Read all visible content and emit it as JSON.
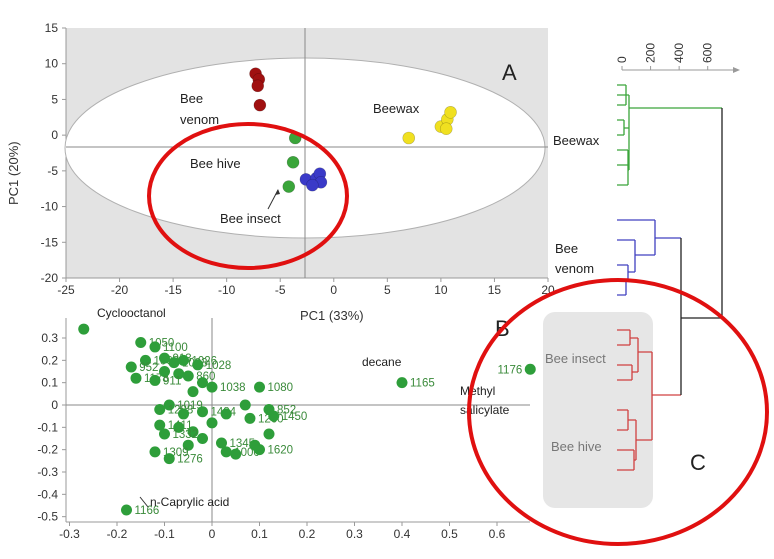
{
  "colors": {
    "bee_venom": "#a01010",
    "bee_hive": "#3aa53a",
    "bee_insect": "#3a3ac8",
    "beewax": "#f0e020",
    "loadings": "#2e9e3a",
    "dendro_beewax": "#3aa53a",
    "dendro_venom": "#4040c0",
    "dendro_insect_hive": "#d04040",
    "dendro_root": "#222222",
    "highlight_circle": "#e01010",
    "panel_c_box": "#e6e6e6"
  },
  "panels": {
    "a": "A",
    "b": "B",
    "c": "C"
  },
  "chart_data": [
    {
      "type": "scatter",
      "panel": "A",
      "xlabel": "PC1 (33%)",
      "ylabel": "PC1 (20%)",
      "xlim": [
        -25,
        20
      ],
      "ylim": [
        -20,
        15
      ],
      "xticks": [
        -25,
        -20,
        -15,
        -10,
        -5,
        0,
        5,
        10,
        15,
        20
      ],
      "yticks": [
        15,
        10,
        5,
        0,
        -5,
        -10,
        -15,
        -20
      ],
      "grid": false,
      "series": [
        {
          "name": "Bee venom",
          "points": [
            [
              -7.3,
              8.6
            ],
            [
              -7.0,
              7.8
            ],
            [
              -7.1,
              6.9
            ],
            [
              -6.9,
              4.2
            ]
          ]
        },
        {
          "name": "Beewax",
          "points": [
            [
              7.0,
              -0.4
            ],
            [
              10.0,
              1.2
            ],
            [
              10.6,
              2.2
            ],
            [
              10.9,
              3.2
            ],
            [
              10.5,
              0.9
            ]
          ]
        },
        {
          "name": "Bee hive",
          "points": [
            [
              -3.6,
              -0.4
            ],
            [
              -3.8,
              -3.8
            ],
            [
              -4.2,
              -7.2
            ]
          ]
        },
        {
          "name": "Bee insect",
          "points": [
            [
              -2.6,
              -6.2
            ],
            [
              -1.6,
              -6.0
            ],
            [
              -1.3,
              -5.4
            ],
            [
              -1.2,
              -6.6
            ],
            [
              -2.0,
              -7.0
            ]
          ]
        }
      ],
      "annotations": [
        "Bee venom",
        "Beewax",
        "Bee hive",
        "Bee insect"
      ]
    },
    {
      "type": "scatter",
      "panel": "B",
      "xlabel": "",
      "ylabel": "",
      "xlim": [
        -0.3,
        0.68
      ],
      "ylim": [
        -0.5,
        0.35
      ],
      "xticks": [
        -0.3,
        -0.2,
        -0.1,
        0,
        0.1,
        0.2,
        0.3,
        0.4,
        0.5,
        0.6
      ],
      "yticks": [
        0.3,
        0.2,
        0.1,
        0,
        -0.1,
        -0.2,
        -0.3,
        -0.4,
        -0.5
      ],
      "grid": false,
      "points": [
        {
          "x": -0.27,
          "y": 0.34,
          "label": ""
        },
        {
          "x": -0.15,
          "y": 0.28,
          "label": "1050"
        },
        {
          "x": -0.12,
          "y": 0.26,
          "label": "1100"
        },
        {
          "x": -0.14,
          "y": 0.2,
          "label": "1068"
        },
        {
          "x": -0.17,
          "y": 0.17,
          "label": "952"
        },
        {
          "x": -0.16,
          "y": 0.12,
          "label": "1178"
        },
        {
          "x": -0.1,
          "y": 0.21,
          "label": "913"
        },
        {
          "x": -0.08,
          "y": 0.19,
          "label": "1083"
        },
        {
          "x": -0.06,
          "y": 0.2,
          "label": "1026"
        },
        {
          "x": -0.03,
          "y": 0.18,
          "label": "1028"
        },
        {
          "x": -0.1,
          "y": 0.15,
          "label": ""
        },
        {
          "x": -0.07,
          "y": 0.14,
          "label": ""
        },
        {
          "x": -0.12,
          "y": 0.11,
          "label": "911"
        },
        {
          "x": -0.05,
          "y": 0.13,
          "label": "860"
        },
        {
          "x": -0.02,
          "y": 0.1,
          "label": ""
        },
        {
          "x": 0.0,
          "y": 0.08,
          "label": "1038"
        },
        {
          "x": -0.04,
          "y": 0.06,
          "label": ""
        },
        {
          "x": 0.1,
          "y": 0.08,
          "label": "1080"
        },
        {
          "x": -0.09,
          "y": 0.0,
          "label": "1019"
        },
        {
          "x": -0.11,
          "y": -0.02,
          "label": "1288"
        },
        {
          "x": -0.06,
          "y": -0.04,
          "label": ""
        },
        {
          "x": -0.02,
          "y": -0.03,
          "label": "1484"
        },
        {
          "x": 0.03,
          "y": -0.04,
          "label": ""
        },
        {
          "x": 0.07,
          "y": 0.0,
          "label": ""
        },
        {
          "x": 0.08,
          "y": -0.06,
          "label": "1260"
        },
        {
          "x": 0.12,
          "y": -0.02,
          "label": "852"
        },
        {
          "x": 0.13,
          "y": -0.05,
          "label": "1450"
        },
        {
          "x": -0.11,
          "y": -0.09,
          "label": "1411"
        },
        {
          "x": -0.07,
          "y": -0.1,
          "label": ""
        },
        {
          "x": -0.04,
          "y": -0.12,
          "label": ""
        },
        {
          "x": 0.0,
          "y": -0.08,
          "label": ""
        },
        {
          "x": -0.1,
          "y": -0.13,
          "label": "1332"
        },
        {
          "x": -0.02,
          "y": -0.15,
          "label": ""
        },
        {
          "x": 0.02,
          "y": -0.17,
          "label": "1345"
        },
        {
          "x": 0.03,
          "y": -0.21,
          "label": "1000"
        },
        {
          "x": 0.12,
          "y": -0.13,
          "label": ""
        },
        {
          "x": 0.09,
          "y": -0.18,
          "label": ""
        },
        {
          "x": -0.05,
          "y": -0.18,
          "label": ""
        },
        {
          "x": -0.12,
          "y": -0.21,
          "label": "1309"
        },
        {
          "x": -0.09,
          "y": -0.24,
          "label": "1276"
        },
        {
          "x": 0.05,
          "y": -0.22,
          "label": ""
        },
        {
          "x": 0.1,
          "y": -0.2,
          "label": "1620"
        },
        {
          "x": 0.4,
          "y": 0.1,
          "label": "1165"
        },
        {
          "x": 0.67,
          "y": 0.16,
          "label": "1176"
        },
        {
          "x": -0.18,
          "y": -0.47,
          "label": "1166"
        }
      ],
      "variable_names": [
        "Cyclooctanol",
        "decane",
        "Methyl salicylate",
        "n-Caprylic acid"
      ]
    },
    {
      "type": "dendrogram",
      "panel": "C",
      "xticks": [
        0,
        200,
        400,
        600
      ],
      "xlim": [
        0,
        700
      ],
      "leaves": [
        "Beewax",
        "Bee venom",
        "Bee insect",
        "Bee hive"
      ],
      "merge_heights": {
        "beewax_internal": 30,
        "venom_internal": 240,
        "insect_hive_internal": 220,
        "venom_insect_hive": 420,
        "root": 700
      }
    }
  ]
}
